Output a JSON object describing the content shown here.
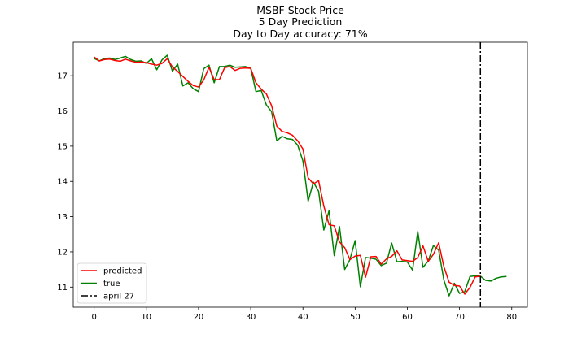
{
  "chart_data": {
    "type": "line",
    "title_lines": [
      "MSBF Stock Price",
      "5 Day Prediction",
      "Day to Day accuracy: 71%"
    ],
    "xlim": [
      -4,
      83
    ],
    "ylim": [
      10.43,
      17.95
    ],
    "xticks": [
      0,
      10,
      20,
      30,
      40,
      50,
      60,
      70,
      80
    ],
    "yticks": [
      11,
      12,
      13,
      14,
      15,
      16,
      17
    ],
    "grid": false,
    "legend_position": "lower-left",
    "colors": {
      "predicted": "#ff0000",
      "true": "#008000",
      "marker": "#000000"
    },
    "series": [
      {
        "name": "predicted",
        "color": "#ff0000",
        "x": [
          0,
          1,
          2,
          3,
          4,
          5,
          6,
          7,
          8,
          9,
          10,
          11,
          12,
          13,
          14,
          15,
          16,
          17,
          18,
          19,
          20,
          21,
          22,
          23,
          24,
          25,
          26,
          27,
          28,
          29,
          30,
          31,
          32,
          33,
          34,
          35,
          36,
          37,
          38,
          39,
          40,
          41,
          42,
          43,
          44,
          45,
          46,
          47,
          48,
          49,
          50,
          51,
          52,
          53,
          54,
          55,
          56,
          57,
          58,
          59,
          60,
          61,
          62,
          63,
          64,
          65,
          66,
          67,
          68,
          69,
          70,
          71,
          72,
          73,
          74
        ],
        "y": [
          17.53,
          17.42,
          17.46,
          17.47,
          17.43,
          17.41,
          17.47,
          17.42,
          17.38,
          17.39,
          17.37,
          17.33,
          17.3,
          17.35,
          17.48,
          17.25,
          17.12,
          16.98,
          16.84,
          16.72,
          16.68,
          16.88,
          17.24,
          16.89,
          16.89,
          17.23,
          17.26,
          17.15,
          17.21,
          17.22,
          17.21,
          16.8,
          16.62,
          16.48,
          16.15,
          15.57,
          15.42,
          15.38,
          15.31,
          15.15,
          14.92,
          14.1,
          13.93,
          14.02,
          13.3,
          12.77,
          12.74,
          12.28,
          12.12,
          11.78,
          11.88,
          11.9,
          11.28,
          11.86,
          11.87,
          11.65,
          11.8,
          11.87,
          12.03,
          11.77,
          11.75,
          11.73,
          11.84,
          12.17,
          11.73,
          11.93,
          12.26,
          11.58,
          11.14,
          11.05,
          11.03,
          10.8,
          10.99,
          11.29,
          11.31
        ]
      },
      {
        "name": "true",
        "color": "#008000",
        "x": [
          0,
          1,
          2,
          3,
          4,
          5,
          6,
          7,
          8,
          9,
          10,
          11,
          12,
          13,
          14,
          15,
          16,
          17,
          18,
          19,
          20,
          21,
          22,
          23,
          24,
          25,
          26,
          27,
          28,
          29,
          30,
          31,
          32,
          33,
          34,
          35,
          36,
          37,
          38,
          39,
          40,
          41,
          42,
          43,
          44,
          45,
          46,
          47,
          48,
          49,
          50,
          51,
          52,
          53,
          54,
          55,
          56,
          57,
          58,
          59,
          60,
          61,
          62,
          63,
          64,
          65,
          66,
          67,
          68,
          69,
          70,
          71,
          72,
          73,
          74,
          75,
          76,
          77,
          78,
          79
        ],
        "y": [
          17.49,
          17.42,
          17.49,
          17.5,
          17.46,
          17.5,
          17.55,
          17.46,
          17.41,
          17.42,
          17.35,
          17.48,
          17.17,
          17.45,
          17.58,
          17.13,
          17.33,
          16.71,
          16.8,
          16.63,
          16.55,
          17.2,
          17.3,
          16.8,
          17.26,
          17.26,
          17.3,
          17.24,
          17.25,
          17.26,
          17.21,
          16.55,
          16.58,
          16.17,
          15.98,
          15.15,
          15.28,
          15.21,
          15.19,
          15.03,
          14.58,
          13.44,
          13.98,
          13.72,
          12.62,
          13.17,
          11.89,
          12.72,
          11.5,
          11.78,
          12.32,
          11.01,
          11.84,
          11.82,
          11.79,
          11.61,
          11.68,
          12.25,
          11.72,
          11.73,
          11.71,
          11.48,
          12.58,
          11.56,
          11.74,
          12.18,
          12.05,
          11.2,
          10.75,
          11.11,
          10.82,
          10.87,
          11.3,
          11.32,
          11.31,
          11.19,
          11.17,
          11.25,
          11.29,
          11.3
        ]
      }
    ],
    "vline": {
      "name": "april 27",
      "x": 74,
      "color": "#000000",
      "style": "dashdot"
    }
  }
}
